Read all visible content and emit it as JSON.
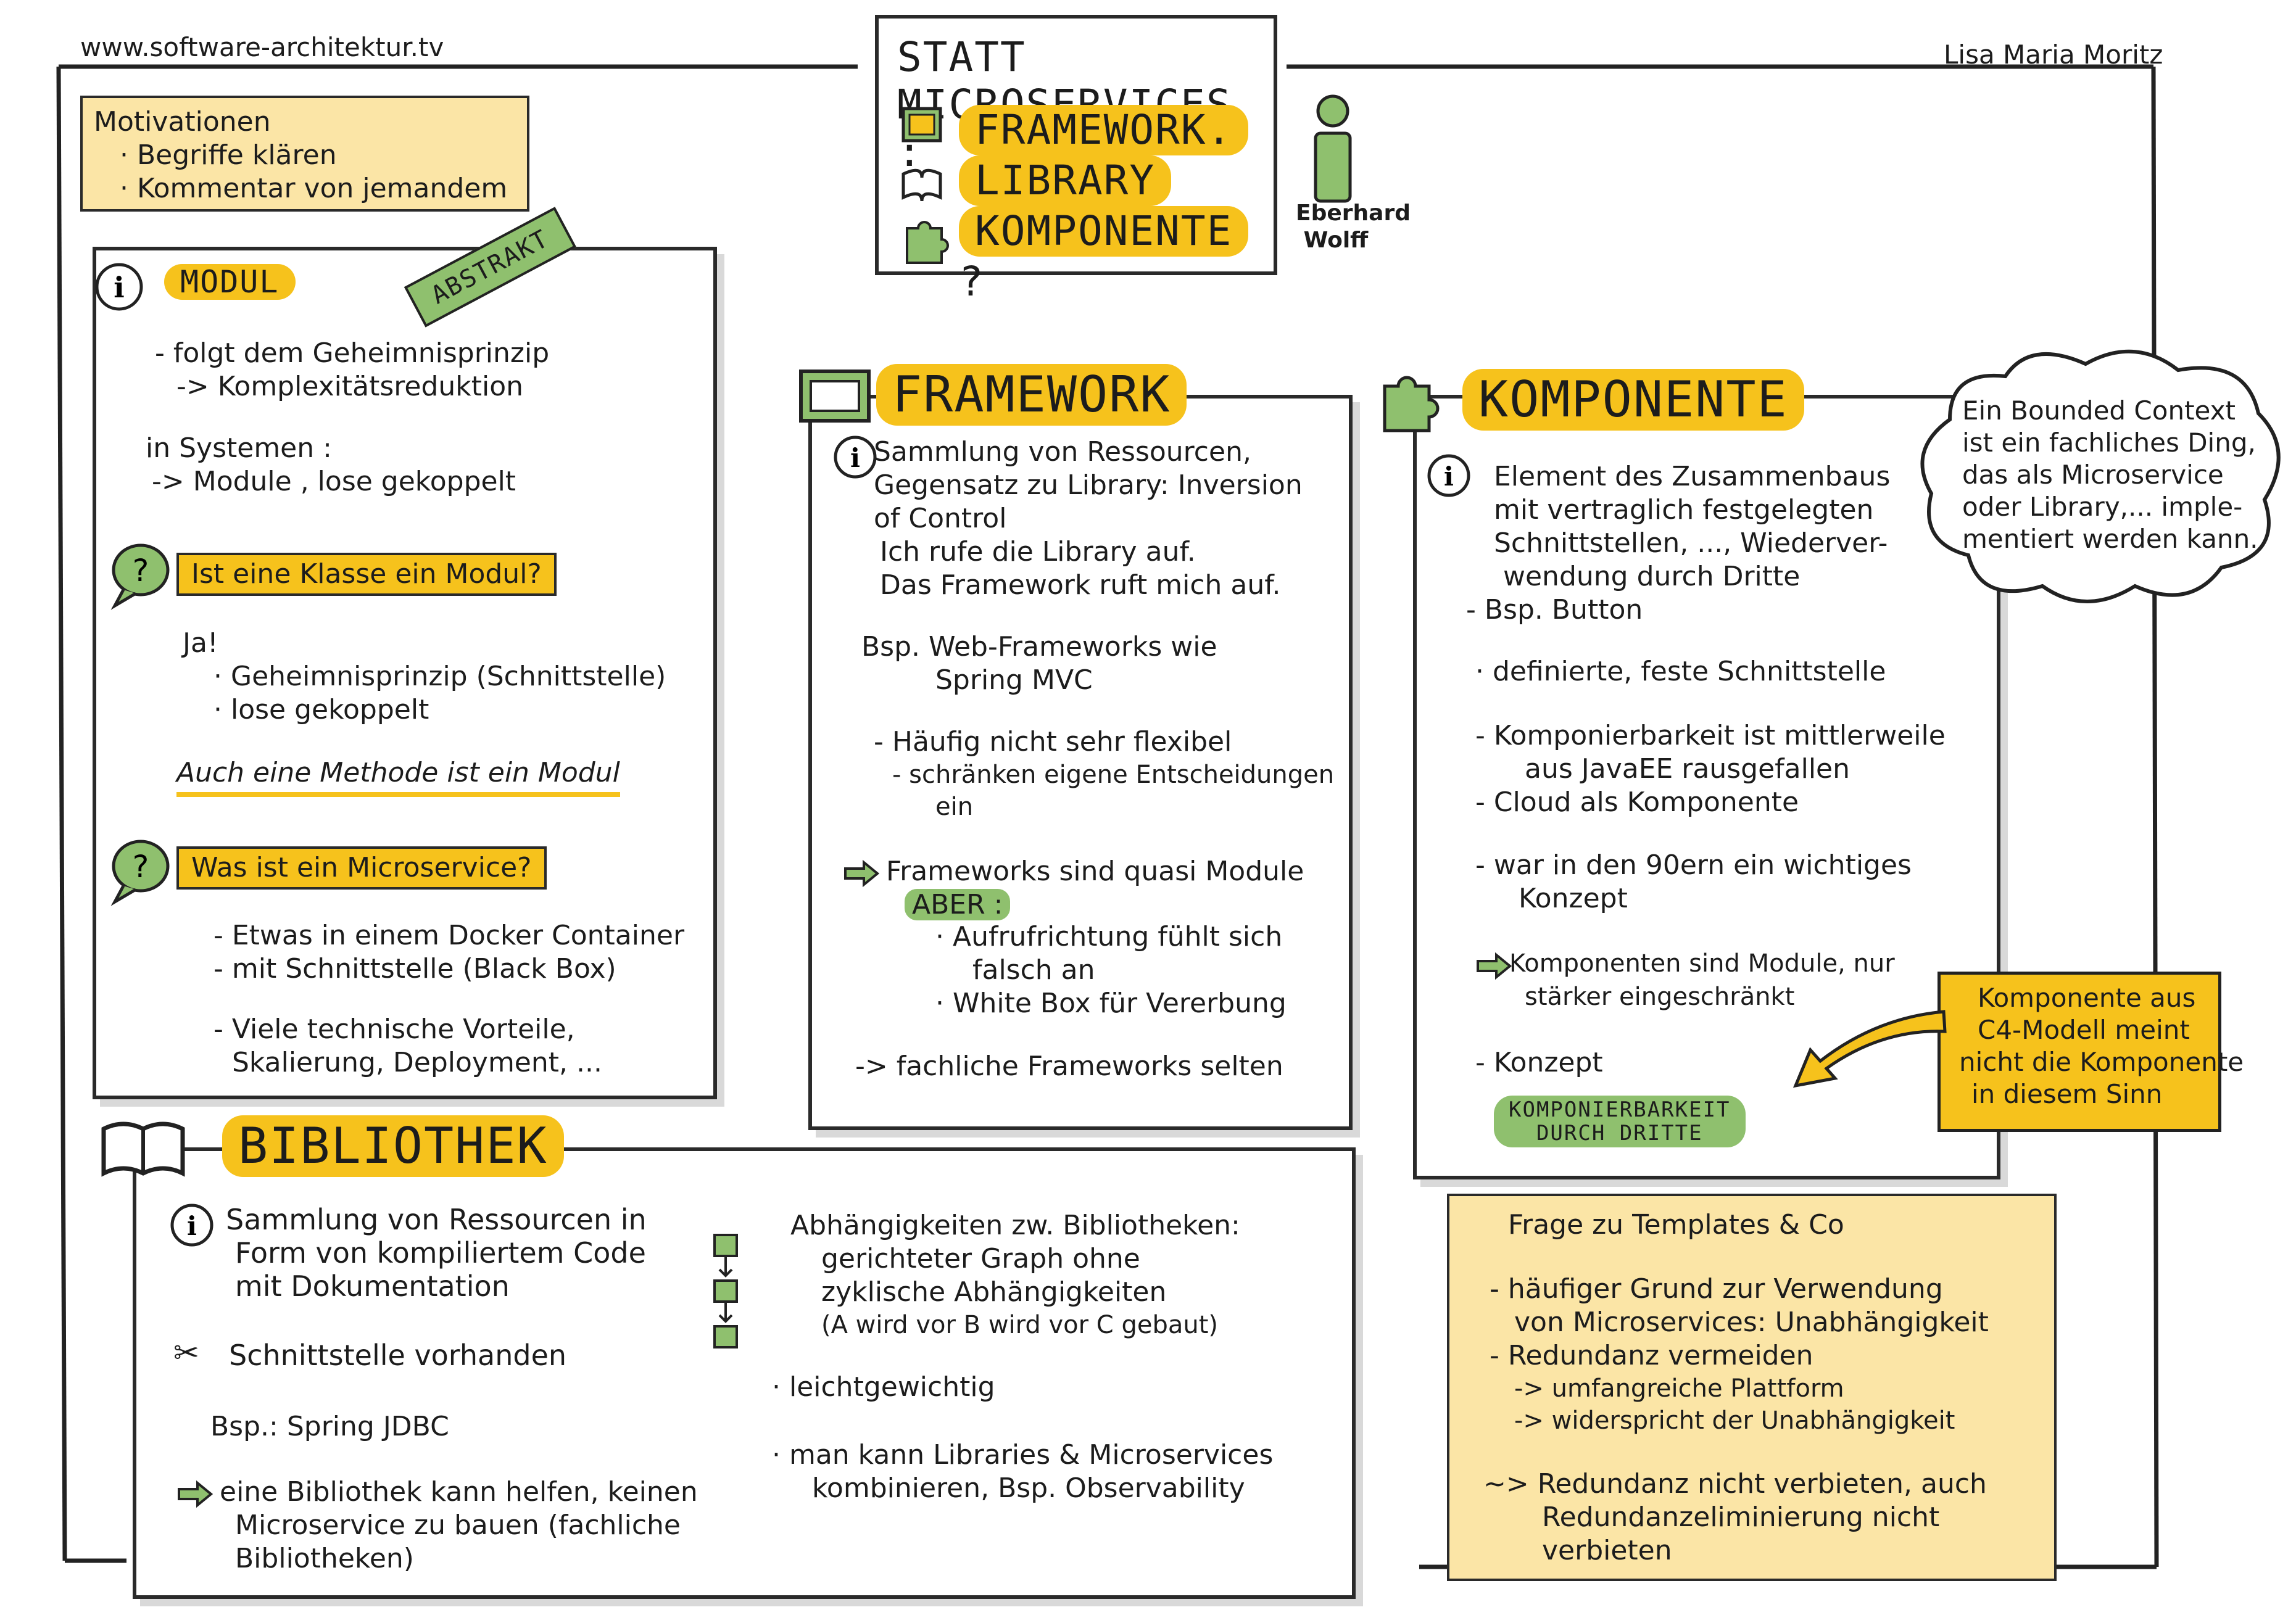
{
  "header": {
    "website": "www.software-architektur.tv",
    "author": "Lisa Maria Moritz",
    "title_line1": "STATT MICROSERVICES :",
    "title_items": [
      "FRAMEWORK.",
      "LIBRARY",
      "KOMPONENTE"
    ],
    "title_question": "?",
    "speaker_first": "Eberhard",
    "speaker_last": "Wolff"
  },
  "motivation": {
    "title": "Motivationen",
    "items": [
      "· Begriffe klären",
      "· Kommentar von jemandem"
    ]
  },
  "modul": {
    "heading": "MODUL",
    "stamp": "ABSTRAKT",
    "lines": [
      "- folgt dem Geheimnisprinzip",
      "-> Komplexitätsreduktion",
      "in Systemen :",
      "-> Module , lose gekoppelt"
    ],
    "q1": "Ist eine Klasse ein Modul?",
    "a1": [
      "Ja!",
      "· Geheimnisprinzip (Schnittstelle)",
      "· lose gekoppelt"
    ],
    "emph": "Auch eine Methode ist ein Modul",
    "q2": "Was ist ein Microservice?",
    "a2": [
      "- Etwas in einem Docker Container",
      "- mit Schnittstelle  (Black Box)",
      "- Viele technische Vorteile,",
      "Skalierung, Deployment, ..."
    ]
  },
  "framework": {
    "heading": "FRAMEWORK",
    "lines": [
      "Sammlung von Ressourcen,",
      "Gegensatz zu Library: Inversion",
      "of Control",
      "Ich rufe die Library auf.",
      "Das Framework ruft mich auf.",
      "Bsp. Web-Frameworks wie",
      "Spring MVC",
      "- Häufig nicht sehr flexibel",
      "- schränken eigene Entscheidungen",
      "ein",
      "Frameworks sind quasi Module",
      "ABER :",
      "· Aufrufrichtung fühlt sich",
      "falsch an",
      "· White Box für Vererbung",
      "-> fachliche Frameworks selten"
    ]
  },
  "komponente": {
    "heading": "KOMPONENTE",
    "lines": [
      "Element des Zusammenbaus",
      "mit vertraglich festgelegten",
      "Schnittstellen, ..., Wiederver-",
      "wendung durch Dritte",
      "- Bsp. Button",
      "· definierte, feste Schnittstelle",
      "- Komponierbarkeit ist mittlerweile",
      "aus JavaEE rausgefallen",
      "- Cloud als Komponente",
      "- war in den 90ern ein wichtiges",
      "Konzept",
      "Komponenten sind Module, nur",
      "stärker eingeschränkt",
      "- Konzept"
    ],
    "badge_line1": "KOMPONIERBARKEIT",
    "badge_line2": "DURCH DRITTE"
  },
  "cloud": {
    "lines": [
      "Ein Bounded Context",
      "ist ein fachliches Ding,",
      "das als Microservice",
      "oder Library,... imple-",
      "mentiert werden kann."
    ]
  },
  "c4note": {
    "lines": [
      "Komponente aus",
      "C4-Modell meint",
      "nicht die Komponente",
      "in diesem Sinn"
    ]
  },
  "bibliothek": {
    "heading": "BIBLIOTHEK",
    "left": [
      "Sammlung von Ressourcen in",
      "Form von kompiliertem Code",
      "mit Dokumentation",
      "Schnittstelle vorhanden",
      "Bsp.: Spring JDBC",
      "eine Bibliothek kann helfen, keinen",
      "Microservice zu bauen (fachliche",
      "Bibliotheken)"
    ],
    "right": [
      "Abhängigkeiten zw. Bibliotheken:",
      "gerichteter Graph ohne",
      "zyklische Abhängigkeiten",
      "(A wird vor B wird vor C gebaut)",
      "· leichtgewichtig",
      "· man kann Libraries & Microservices",
      "kombinieren, Bsp. Observability"
    ]
  },
  "templates": {
    "title": "Frage zu Templates & Co",
    "lines": [
      "- häufiger Grund zur Verwendung",
      "von Microservices: Unabhängigkeit",
      "- Redundanz vermeiden",
      "-> umfangreiche Plattform",
      "-> widerspricht der Unabhängigkeit",
      "~> Redundanz nicht verbieten, auch",
      "Redundanzeliminierung nicht",
      "verbieten"
    ]
  },
  "colors": {
    "accent": "#f6c21c",
    "green": "#8fc06e",
    "note": "#fbe5a6",
    "ink": "#1c1c1c"
  }
}
